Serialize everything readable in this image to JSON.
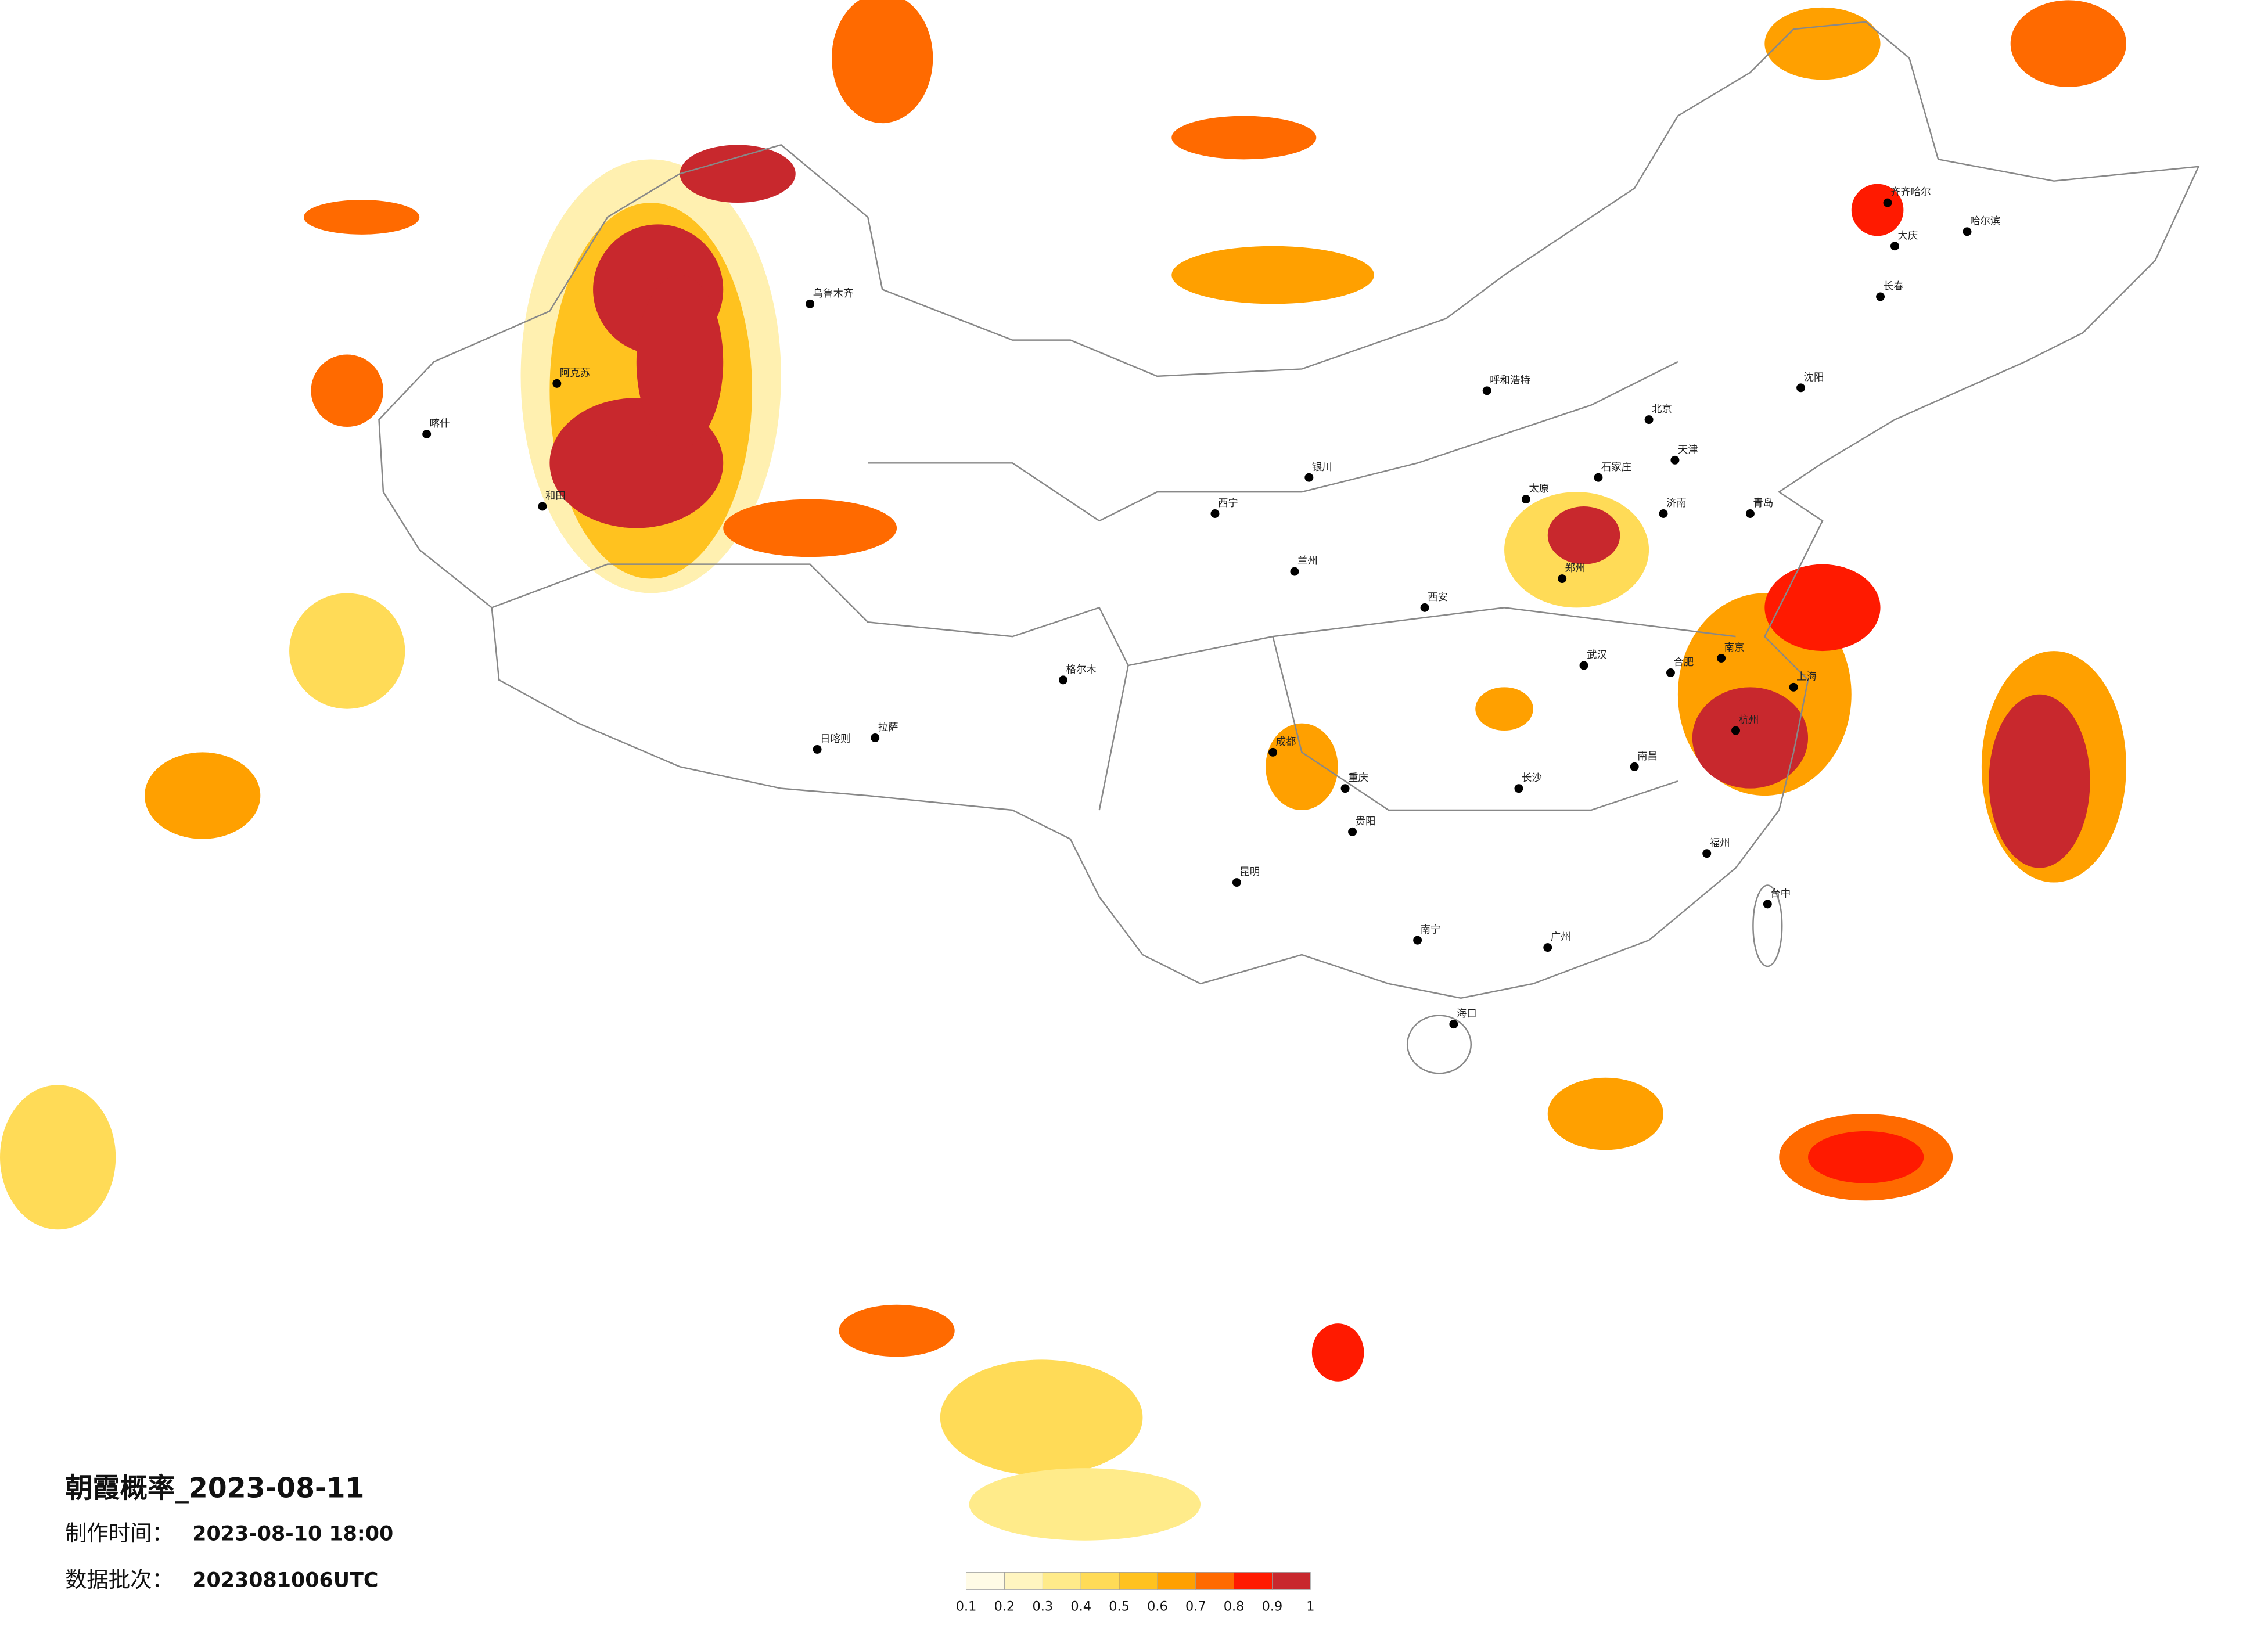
{
  "title": "朝霞概率_2023-08-11",
  "info": [
    {
      "label": "制作时间：",
      "value": "2023-08-10 18:00"
    },
    {
      "label": "数据批次：",
      "value": "2023081006UTC"
    }
  ],
  "legend": {
    "ticks": [
      0.1,
      0.2,
      0.3,
      0.4,
      0.5,
      0.6,
      0.7,
      0.8,
      0.9,
      1
    ],
    "colors": [
      "#fffbe6",
      "#fff5c0",
      "#ffeb8a",
      "#ffdb57",
      "#ffc21f",
      "#ffa000",
      "#ff6a00",
      "#ff1a00",
      "#c8282d"
    ]
  },
  "cities": [
    "北京",
    "天津",
    "石家庄",
    "太原",
    "呼和浩特",
    "沈阳",
    "长春",
    "哈尔滨",
    "济南",
    "郑州",
    "西安",
    "兰州",
    "银川",
    "西宁",
    "乌鲁木齐",
    "拉萨",
    "成都",
    "重庆",
    "贵阳",
    "昆明",
    "南宁",
    "广州",
    "长沙",
    "武汉",
    "南昌",
    "杭州",
    "上海",
    "南京",
    "合肥",
    "福州",
    "海口",
    "台中",
    "齐齐哈尔",
    "喀什",
    "阿克苏",
    "和田",
    "日喀则",
    "格尔木",
    "大庆",
    "青岛"
  ]
}
